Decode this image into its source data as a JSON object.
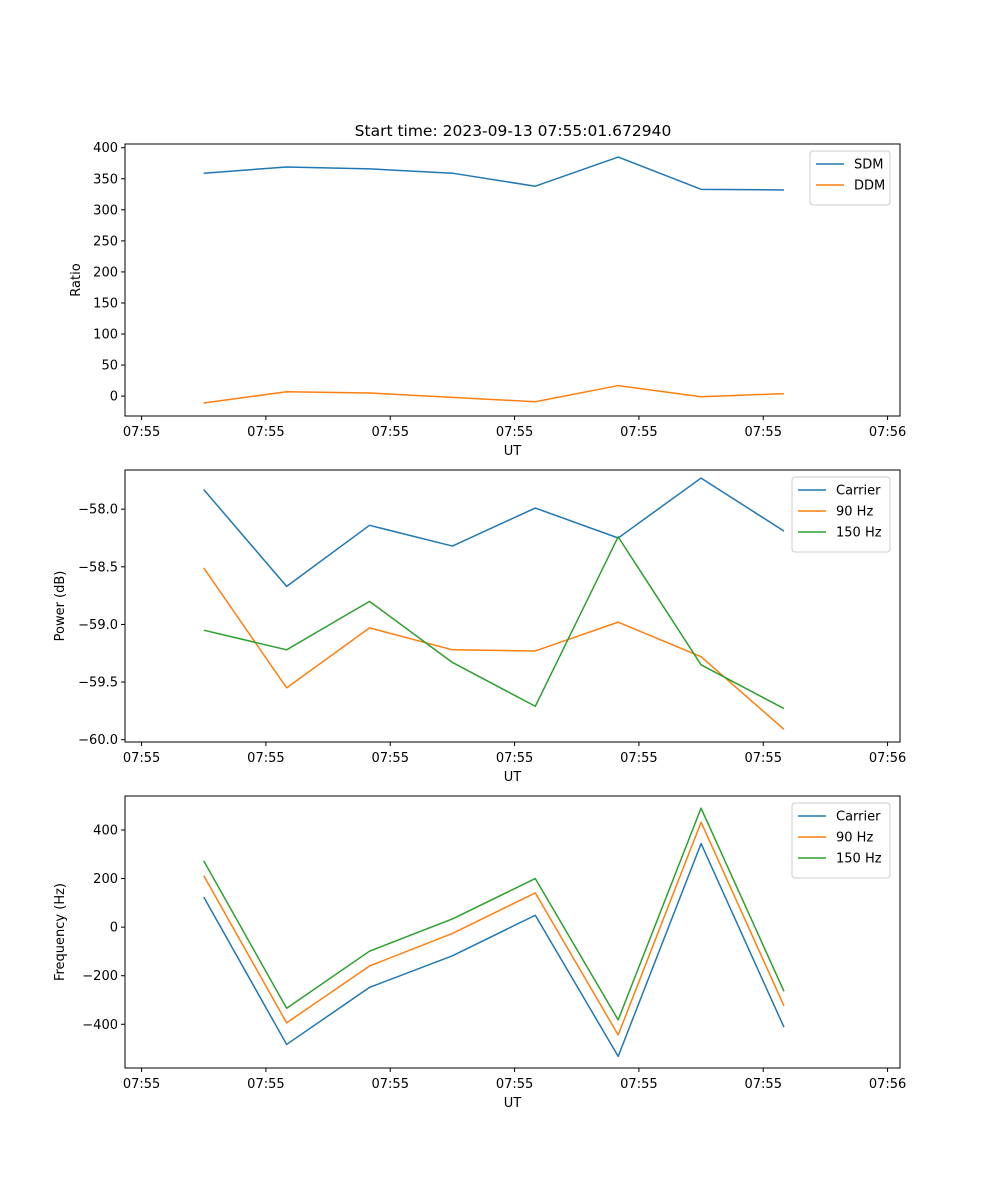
{
  "figure_title": "Start time: 2023-09-13 07:55:01.672940",
  "chart_data": [
    {
      "type": "line",
      "ylabel": "Ratio",
      "xlabel": "UT",
      "ylim": [
        -32,
        406
      ],
      "yticks": [
        0,
        50,
        100,
        150,
        200,
        250,
        300,
        350,
        400
      ],
      "xlim": [
        -0.2,
        9.15
      ],
      "xticks": [
        0,
        1.5,
        3,
        4.5,
        6,
        7.5,
        9
      ],
      "xtick_labels": [
        "07:55",
        "07:55",
        "07:55",
        "07:55",
        "07:55",
        "07:55",
        "07:56"
      ],
      "x": [
        0.75,
        1.75,
        2.75,
        3.75,
        4.75,
        5.75,
        6.75,
        7.75
      ],
      "series": [
        {
          "name": "SDM",
          "color": "#1f77b4",
          "values": [
            359,
            369,
            366,
            359,
            338,
            385,
            333,
            332
          ]
        },
        {
          "name": "DDM",
          "color": "#ff7f0e",
          "values": [
            -11,
            7,
            5,
            -2,
            -9,
            17,
            -1,
            4
          ]
        }
      ],
      "legend": "top-right"
    },
    {
      "type": "line",
      "ylabel": "Power (dB)",
      "xlabel": "UT",
      "ylim": [
        -60.02,
        -57.66
      ],
      "yticks": [
        -60.0,
        -59.5,
        -59.0,
        -58.5,
        -58.0
      ],
      "ytick_labels": [
        "−60.0",
        "−59.5",
        "−59.0",
        "−58.5",
        "−58.0"
      ],
      "xlim": [
        -0.2,
        9.15
      ],
      "xticks": [
        0,
        1.5,
        3,
        4.5,
        6,
        7.5,
        9
      ],
      "xtick_labels": [
        "07:55",
        "07:55",
        "07:55",
        "07:55",
        "07:55",
        "07:55",
        "07:56"
      ],
      "x": [
        0.75,
        1.75,
        2.75,
        3.75,
        4.75,
        5.75,
        6.75,
        7.75
      ],
      "series": [
        {
          "name": "Carrier",
          "color": "#1f77b4",
          "values": [
            -57.83,
            -58.67,
            -58.14,
            -58.32,
            -57.99,
            -58.25,
            -57.73,
            -58.19
          ]
        },
        {
          "name": "90 Hz",
          "color": "#ff7f0e",
          "values": [
            -58.51,
            -59.55,
            -59.03,
            -59.22,
            -59.23,
            -58.98,
            -59.28,
            -59.91
          ]
        },
        {
          "name": "150 Hz",
          "color": "#2ca02c",
          "values": [
            -59.05,
            -59.22,
            -58.8,
            -59.33,
            -59.71,
            -58.24,
            -59.35,
            -59.73
          ]
        }
      ],
      "legend": "top-right"
    },
    {
      "type": "line",
      "ylabel": "Frequency (Hz)",
      "xlabel": "UT",
      "ylim": [
        -580,
        540
      ],
      "yticks": [
        -400,
        -200,
        0,
        200,
        400
      ],
      "ytick_labels": [
        "−400",
        "−200",
        "0",
        "200",
        "400"
      ],
      "xlim": [
        -0.2,
        9.15
      ],
      "xticks": [
        0,
        1.5,
        3,
        4.5,
        6,
        7.5,
        9
      ],
      "xtick_labels": [
        "07:55",
        "07:55",
        "07:55",
        "07:55",
        "07:55",
        "07:55",
        "07:56"
      ],
      "x": [
        0.75,
        1.75,
        2.75,
        3.75,
        4.75,
        5.75,
        6.75,
        7.75
      ],
      "series": [
        {
          "name": "Carrier",
          "color": "#1f77b4",
          "values": [
            124,
            -483,
            -248,
            -118,
            49,
            -532,
            344,
            -412
          ]
        },
        {
          "name": "90 Hz",
          "color": "#ff7f0e",
          "values": [
            212,
            -394,
            -160,
            -26,
            141,
            -444,
            432,
            -324
          ]
        },
        {
          "name": "150 Hz",
          "color": "#2ca02c",
          "values": [
            273,
            -334,
            -99,
            34,
            200,
            -382,
            490,
            -264
          ]
        }
      ],
      "legend": "top-right"
    }
  ]
}
